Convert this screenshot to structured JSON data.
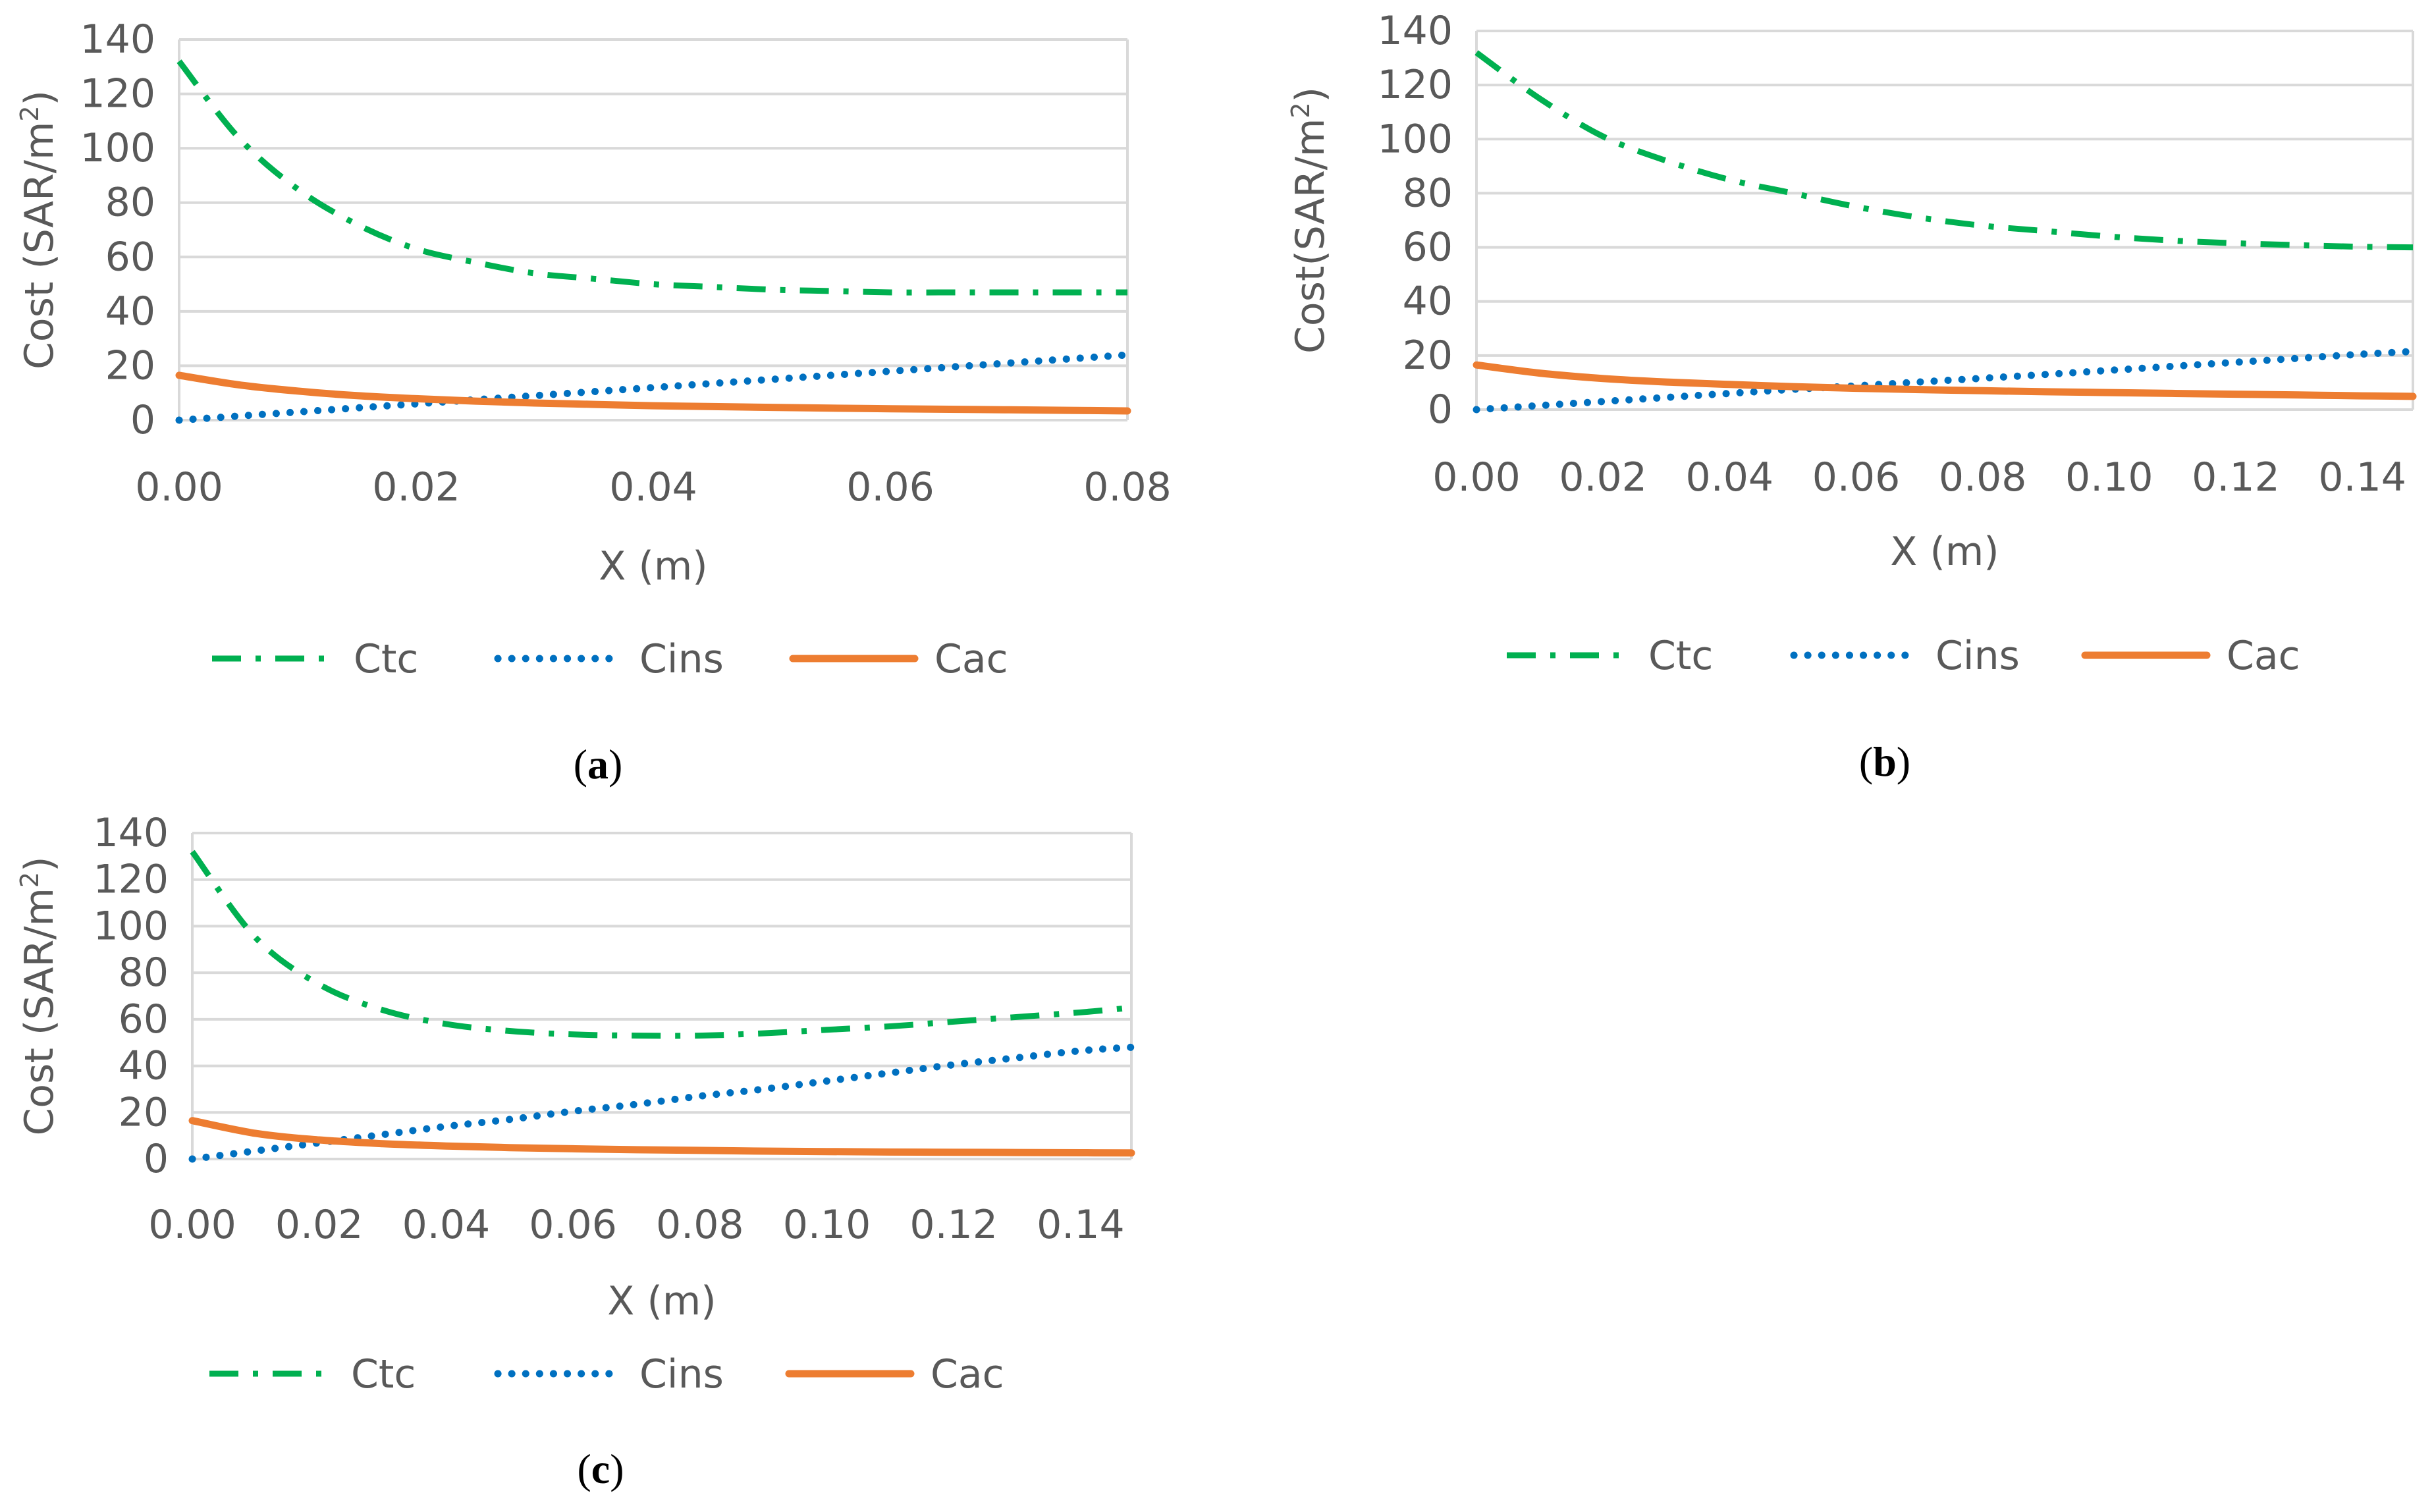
{
  "colors": {
    "ctc": "#00b050",
    "cins": "#0070c0",
    "cac": "#ed7d31",
    "grid": "#d9d9d9",
    "text": "#595959"
  },
  "legend": [
    {
      "key": "ctc",
      "label": "Ctc",
      "style": "dash-dot"
    },
    {
      "key": "cins",
      "label": "Cins",
      "style": "dotted"
    },
    {
      "key": "cac",
      "label": "Cac",
      "style": "solid"
    }
  ],
  "chart_data": [
    {
      "type": "line",
      "panel": "a",
      "caption": "(a)",
      "caption_letter": "a",
      "xlabel": "X (m)",
      "ylabel_main": "Cost (SAR/m",
      "ylabel_sup": "2",
      "ylabel_end": ")",
      "xlim": [
        0,
        0.08
      ],
      "ylim": [
        0,
        140
      ],
      "xticks": [
        "0.00",
        "0.02",
        "0.04",
        "0.06",
        "0.08"
      ],
      "yticks": [
        "0",
        "20",
        "40",
        "60",
        "80",
        "100",
        "120",
        "140"
      ],
      "x": [
        0,
        0.005,
        0.01,
        0.015,
        0.02,
        0.025,
        0.03,
        0.035,
        0.04,
        0.045,
        0.05,
        0.055,
        0.06,
        0.065,
        0.07,
        0.075,
        0.08
      ],
      "series": [
        {
          "name": "Ctc",
          "values": [
            132,
            104,
            85,
            72,
            63,
            58,
            54,
            52,
            50,
            49,
            48,
            47.5,
            47,
            47,
            47,
            47,
            47
          ]
        },
        {
          "name": "Cins",
          "values": [
            0,
            1.5,
            3,
            4.5,
            6,
            7.5,
            9,
            10.5,
            12,
            13.5,
            15,
            16.5,
            18,
            19.5,
            21,
            22.5,
            24
          ]
        },
        {
          "name": "Cac",
          "values": [
            16.5,
            13,
            10.7,
            9,
            7.9,
            7,
            6.3,
            5.8,
            5.3,
            5,
            4.7,
            4.4,
            4.2,
            4,
            3.8,
            3.6,
            3.4
          ]
        }
      ]
    },
    {
      "type": "line",
      "panel": "b",
      "caption": "(b)",
      "caption_letter": "b",
      "xlabel": "X (m)",
      "ylabel_main": "Cost(SAR/m",
      "ylabel_sup": "2",
      "ylabel_end": ")",
      "xlim": [
        0,
        0.148
      ],
      "ylim": [
        0,
        140
      ],
      "xticks": [
        "0.00",
        "0.02",
        "0.04",
        "0.06",
        "0.08",
        "0.10",
        "0.12",
        "0.14"
      ],
      "yticks": [
        "0",
        "20",
        "40",
        "60",
        "80",
        "100",
        "120",
        "140"
      ],
      "x": [
        0,
        0.01,
        0.02,
        0.03,
        0.04,
        0.05,
        0.06,
        0.07,
        0.08,
        0.09,
        0.1,
        0.11,
        0.12,
        0.13,
        0.14,
        0.148
      ],
      "series": [
        {
          "name": "Ctc",
          "values": [
            132,
            115,
            101,
            92,
            85,
            80,
            75,
            71,
            68,
            66,
            64,
            62.5,
            61.5,
            60.8,
            60.2,
            60
          ]
        },
        {
          "name": "Cins",
          "values": [
            0,
            1.5,
            3,
            4.5,
            6,
            7.5,
            8.8,
            10.2,
            11.6,
            13,
            14.5,
            16,
            17.5,
            19,
            20.5,
            21.5
          ]
        },
        {
          "name": "Cac",
          "values": [
            16.5,
            13.5,
            11.5,
            10.2,
            9.3,
            8.5,
            7.9,
            7.4,
            7,
            6.6,
            6.3,
            6,
            5.7,
            5.4,
            5.1,
            4.9
          ]
        }
      ]
    },
    {
      "type": "line",
      "panel": "c",
      "caption": "(c)",
      "caption_letter": "c",
      "xlabel": "X (m)",
      "ylabel_main": "Cost (SAR/m",
      "ylabel_sup": "2",
      "ylabel_end": ")",
      "xlim": [
        0,
        0.148
      ],
      "ylim": [
        0,
        140
      ],
      "xticks": [
        "0.00",
        "0.02",
        "0.04",
        "0.06",
        "0.08",
        "0.10",
        "0.12",
        "0.14"
      ],
      "yticks": [
        "0",
        "20",
        "40",
        "60",
        "80",
        "100",
        "120",
        "140"
      ],
      "x": [
        0,
        0.01,
        0.02,
        0.03,
        0.04,
        0.05,
        0.06,
        0.07,
        0.08,
        0.09,
        0.1,
        0.11,
        0.12,
        0.13,
        0.14,
        0.148
      ],
      "series": [
        {
          "name": "Ctc",
          "values": [
            132,
            95,
            75,
            64,
            58,
            55,
            53.5,
            53,
            53,
            54,
            55.5,
            57,
            59,
            61,
            63,
            65
          ]
        },
        {
          "name": "Cins",
          "values": [
            0,
            3.5,
            7,
            10.5,
            14,
            17,
            20.5,
            23.5,
            27,
            30,
            33.5,
            37,
            40.5,
            43.5,
            46.5,
            48
          ]
        },
        {
          "name": "Cac",
          "values": [
            16.5,
            11,
            8.2,
            6.6,
            5.6,
            4.9,
            4.4,
            4,
            3.7,
            3.4,
            3.2,
            3,
            2.9,
            2.8,
            2.7,
            2.6
          ]
        }
      ]
    }
  ]
}
